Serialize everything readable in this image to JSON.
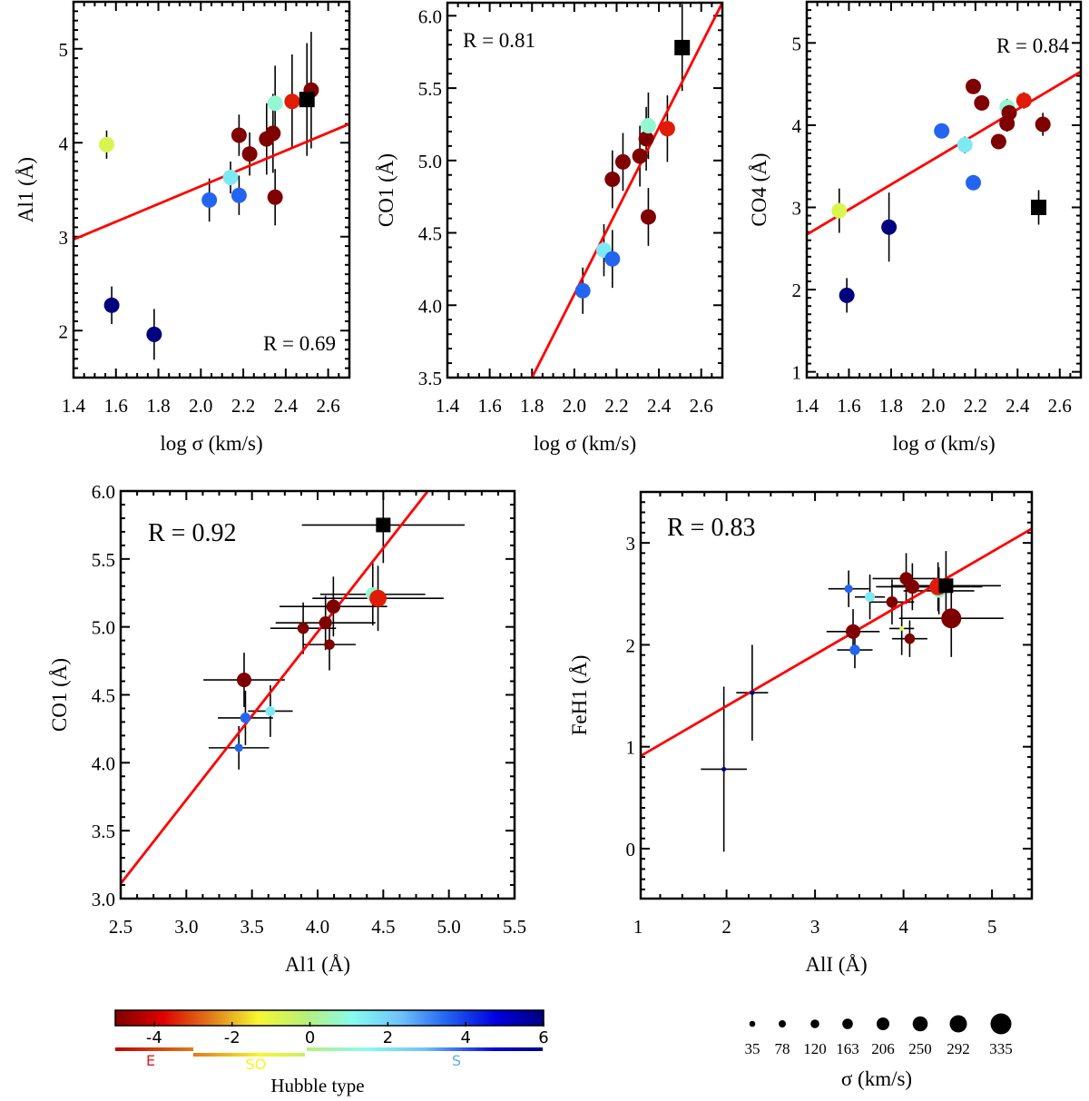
{
  "chart_data": [
    {
      "id": "p1",
      "type": "scatter",
      "xlabel": "log σ (km/s)",
      "ylabel": "Al1 (Å)",
      "xlim": [
        1.4,
        2.7
      ],
      "ylim": [
        1.5,
        5.5
      ],
      "xticks": [
        1.4,
        1.6,
        1.8,
        2.0,
        2.2,
        2.4,
        2.6
      ],
      "xtick_labels": [
        "1.4",
        "1.6",
        "1.8",
        "2.0",
        "2.2",
        "2.4",
        "2.6"
      ],
      "yticks": [
        2,
        3,
        4,
        5
      ],
      "ytick_labels": [
        "2",
        "3",
        "4",
        "5"
      ],
      "annotation": "R = 0.69",
      "annotation_position": "bottom-right",
      "fit_line": [
        [
          1.4,
          2.97
        ],
        [
          2.7,
          4.2
        ]
      ],
      "points": [
        {
          "x": 1.556,
          "y": 3.98,
          "yerr": 0.15,
          "hubble": -0.8
        },
        {
          "x": 1.58,
          "y": 2.27,
          "yerr": 0.2,
          "hubble": 6
        },
        {
          "x": 1.78,
          "y": 1.96,
          "yerr": 0.27,
          "hubble": 6
        },
        {
          "x": 2.04,
          "y": 3.39,
          "yerr": 0.23,
          "hubble": 3.5
        },
        {
          "x": 2.14,
          "y": 3.63,
          "yerr": 0.17,
          "hubble": 1.5
        },
        {
          "x": 2.18,
          "y": 3.44,
          "yerr": 0.21,
          "hubble": 3.5
        },
        {
          "x": 2.18,
          "y": 4.08,
          "yerr": 0.22,
          "hubble": -5
        },
        {
          "x": 2.23,
          "y": 3.88,
          "yerr": 0.23,
          "hubble": -5
        },
        {
          "x": 2.31,
          "y": 4.04,
          "yerr": 0.38,
          "hubble": -5
        },
        {
          "x": 2.34,
          "y": 4.1,
          "yerr": 0.42,
          "hubble": -5
        },
        {
          "x": 2.35,
          "y": 4.42,
          "yerr": 0.4,
          "hubble": 0.8
        },
        {
          "x": 2.35,
          "y": 3.42,
          "yerr": 0.3,
          "hubble": -5
        },
        {
          "x": 2.43,
          "y": 4.44,
          "yerr": 0.5,
          "hubble": -3.5
        },
        {
          "x": 2.52,
          "y": 4.56,
          "yerr": 0.62,
          "hubble": -5
        },
        {
          "x": 2.5,
          "y": 4.46,
          "yerr": 0.6,
          "marker": "square"
        }
      ]
    },
    {
      "id": "p2",
      "type": "scatter",
      "xlabel": "log σ (km/s)",
      "ylabel": "CO1 (Å)",
      "xlim": [
        1.4,
        2.7
      ],
      "ylim": [
        3.5,
        6.09
      ],
      "xticks": [
        1.4,
        1.6,
        1.8,
        2.0,
        2.2,
        2.4,
        2.6
      ],
      "xtick_labels": [
        "1.4",
        "1.6",
        "1.8",
        "2.0",
        "2.2",
        "2.4",
        "2.6"
      ],
      "yticks": [
        3.5,
        4.0,
        4.5,
        5.0,
        5.5,
        6.0
      ],
      "ytick_labels": [
        "3.5",
        "4.0",
        "4.5",
        "5.0",
        "5.5",
        "6.0"
      ],
      "annotation": "R = 0.81",
      "annotation_position": "top-left",
      "fit_line": [
        [
          1.8,
          3.5
        ],
        [
          2.7,
          6.09
        ]
      ],
      "points": [
        {
          "x": 2.04,
          "y": 4.1,
          "yerr": 0.16,
          "hubble": 3.5
        },
        {
          "x": 2.14,
          "y": 4.38,
          "yerr": 0.18,
          "hubble": 1.5
        },
        {
          "x": 2.18,
          "y": 4.32,
          "yerr": 0.2,
          "hubble": 3.5
        },
        {
          "x": 2.18,
          "y": 4.87,
          "yerr": 0.2,
          "hubble": -5
        },
        {
          "x": 2.23,
          "y": 4.99,
          "yerr": 0.2,
          "hubble": -5
        },
        {
          "x": 2.31,
          "y": 5.03,
          "yerr": 0.21,
          "hubble": -5
        },
        {
          "x": 2.34,
          "y": 5.15,
          "yerr": 0.22,
          "hubble": -5
        },
        {
          "x": 2.35,
          "y": 5.24,
          "yerr": 0.23,
          "hubble": 0.8
        },
        {
          "x": 2.35,
          "y": 4.61,
          "yerr": 0.2,
          "hubble": -5
        },
        {
          "x": 2.44,
          "y": 5.22,
          "yerr": 0.23,
          "hubble": -3.5
        },
        {
          "x": 2.51,
          "y": 5.78,
          "yerr": 0.3,
          "marker": "square"
        }
      ]
    },
    {
      "id": "p3",
      "type": "scatter",
      "xlabel": "log σ (km/s)",
      "ylabel": "CO4 (Å)",
      "xlim": [
        1.4,
        2.7
      ],
      "ylim": [
        0.93,
        5.5
      ],
      "xticks": [
        1.4,
        1.6,
        1.8,
        2.0,
        2.2,
        2.4,
        2.6
      ],
      "xtick_labels": [
        "1.4",
        "1.6",
        "1.8",
        "2.0",
        "2.2",
        "2.4",
        "2.6"
      ],
      "yticks": [
        1,
        2,
        3,
        4,
        5
      ],
      "ytick_labels": [
        "1",
        "2",
        "3",
        "4",
        "5"
      ],
      "annotation": "R = 0.84",
      "annotation_position": "top-right",
      "fit_line": [
        [
          1.4,
          2.67
        ],
        [
          2.7,
          4.65
        ]
      ],
      "points": [
        {
          "x": 1.554,
          "y": 2.96,
          "yerr": 0.27,
          "hubble": -0.8
        },
        {
          "x": 1.59,
          "y": 1.93,
          "yerr": 0.21,
          "hubble": 6
        },
        {
          "x": 1.79,
          "y": 2.76,
          "yerr": 0.42,
          "hubble": 6
        },
        {
          "x": 2.04,
          "y": 3.93,
          "yerr": 0.0,
          "hubble": 3.5
        },
        {
          "x": 2.15,
          "y": 3.76,
          "yerr": 0.1,
          "hubble": 1.5
        },
        {
          "x": 2.19,
          "y": 3.3,
          "yerr": 0.0,
          "hubble": 3.5
        },
        {
          "x": 2.19,
          "y": 4.47,
          "yerr": 0.0,
          "hubble": -5
        },
        {
          "x": 2.23,
          "y": 4.27,
          "yerr": 0.0,
          "hubble": -5
        },
        {
          "x": 2.31,
          "y": 3.8,
          "yerr": 0.0,
          "hubble": -5
        },
        {
          "x": 2.35,
          "y": 4.22,
          "yerr": 0.1,
          "hubble": 0.8
        },
        {
          "x": 2.35,
          "y": 4.02,
          "yerr": 0.1,
          "hubble": -5
        },
        {
          "x": 2.36,
          "y": 4.15,
          "yerr": 0.0,
          "hubble": -5
        },
        {
          "x": 2.43,
          "y": 4.3,
          "yerr": 0.1,
          "hubble": -3.5
        },
        {
          "x": 2.52,
          "y": 4.01,
          "yerr": 0.14,
          "hubble": -5
        },
        {
          "x": 2.5,
          "y": 3.0,
          "yerr": 0.21,
          "marker": "square"
        }
      ]
    },
    {
      "id": "p4",
      "type": "scatter",
      "xlabel": "Al1 (Å)",
      "ylabel": "CO1 (Å)",
      "xlim": [
        2.5,
        5.5
      ],
      "ylim": [
        3.0,
        6.0
      ],
      "xticks": [
        2.5,
        3.0,
        3.5,
        4.0,
        4.5,
        5.0,
        5.5
      ],
      "xtick_labels": [
        "2.5",
        "3.0",
        "3.5",
        "4.0",
        "4.5",
        "5.0",
        "5.5"
      ],
      "yticks": [
        3.0,
        3.5,
        4.0,
        4.5,
        5.0,
        5.5,
        6.0
      ],
      "ytick_labels": [
        "3.0",
        "3.5",
        "4.0",
        "4.5",
        "5.0",
        "5.5",
        "6.0"
      ],
      "annotation": "R = 0.92",
      "annotation_position": "top-left",
      "fit_line": [
        [
          2.5,
          3.11
        ],
        [
          4.84,
          6.0
        ]
      ],
      "points": [
        {
          "x": 3.4,
          "y": 4.11,
          "xerr": 0.23,
          "yerr": 0.16,
          "hubble": 3.5,
          "sigma": 110
        },
        {
          "x": 3.45,
          "y": 4.33,
          "xerr": 0.21,
          "yerr": 0.2,
          "hubble": 3.5,
          "sigma": 150
        },
        {
          "x": 3.64,
          "y": 4.38,
          "xerr": 0.17,
          "yerr": 0.19,
          "hubble": 1.5,
          "sigma": 140
        },
        {
          "x": 3.44,
          "y": 4.61,
          "xerr": 0.31,
          "yerr": 0.2,
          "hubble": -5,
          "sigma": 230
        },
        {
          "x": 3.89,
          "y": 4.99,
          "xerr": 0.25,
          "yerr": 0.19,
          "hubble": -5,
          "sigma": 170
        },
        {
          "x": 4.09,
          "y": 4.87,
          "xerr": 0.2,
          "yerr": 0.19,
          "hubble": -5,
          "sigma": 150
        },
        {
          "x": 4.06,
          "y": 5.03,
          "xerr": 0.38,
          "yerr": 0.2,
          "hubble": -5,
          "sigma": 200
        },
        {
          "x": 4.12,
          "y": 5.15,
          "xerr": 0.41,
          "yerr": 0.22,
          "hubble": -5,
          "sigma": 220
        },
        {
          "x": 4.42,
          "y": 5.24,
          "xerr": 0.4,
          "yerr": 0.23,
          "hubble": 0.8,
          "sigma": 220
        },
        {
          "x": 4.46,
          "y": 5.21,
          "xerr": 0.5,
          "yerr": 0.24,
          "hubble": -3.5,
          "sigma": 280
        },
        {
          "x": 4.5,
          "y": 5.75,
          "xerr": 0.62,
          "yerr": 0.28,
          "marker": "square"
        }
      ]
    },
    {
      "id": "p5",
      "type": "scatter",
      "xlabel": "AlI (Å)",
      "ylabel": "FeH1 (Å)",
      "xlim": [
        1.03,
        5.45
      ],
      "ylim": [
        -0.49,
        3.5
      ],
      "xticks": [
        1,
        2,
        3,
        4,
        5
      ],
      "xtick_labels": [
        "1",
        "2",
        "3",
        "4",
        "5"
      ],
      "yticks": [
        0,
        1,
        2,
        3
      ],
      "ytick_labels": [
        "0",
        "1",
        "2",
        "3"
      ],
      "annotation": "R = 0.83",
      "annotation_position": "top-left",
      "fit_line": [
        [
          1.03,
          0.91
        ],
        [
          5.45,
          3.14
        ]
      ],
      "points": [
        {
          "x": 1.97,
          "y": 0.78,
          "xerr": 0.26,
          "yerr": 0.81,
          "hubble": 6,
          "sigma": 38
        },
        {
          "x": 2.29,
          "y": 1.53,
          "xerr": 0.18,
          "yerr": 0.47,
          "hubble": 6,
          "sigma": 40
        },
        {
          "x": 3.38,
          "y": 2.55,
          "xerr": 0.23,
          "yerr": 0.18,
          "hubble": 3.5,
          "sigma": 110
        },
        {
          "x": 3.62,
          "y": 2.47,
          "xerr": 0.17,
          "yerr": 0.22,
          "hubble": 1.5,
          "sigma": 140
        },
        {
          "x": 3.87,
          "y": 2.42,
          "xerr": 0.25,
          "yerr": 0.22,
          "hubble": -5,
          "sigma": 170
        },
        {
          "x": 4.03,
          "y": 2.65,
          "xerr": 0.38,
          "yerr": 0.25,
          "hubble": -5,
          "sigma": 200
        },
        {
          "x": 4.1,
          "y": 2.57,
          "xerr": 0.41,
          "yerr": 0.23,
          "hubble": -5,
          "sigma": 220
        },
        {
          "x": 4.4,
          "y": 2.53,
          "xerr": 0.4,
          "yerr": 0.23,
          "hubble": 0.8,
          "sigma": 220
        },
        {
          "x": 4.39,
          "y": 2.57,
          "xerr": 0.5,
          "yerr": 0.24,
          "hubble": -3.5,
          "sigma": 280
        },
        {
          "x": 4.54,
          "y": 2.26,
          "xerr": 0.59,
          "yerr": 0.38,
          "hubble": -5,
          "sigma": 335
        },
        {
          "x": 3.43,
          "y": 2.13,
          "xerr": 0.3,
          "yerr": 0.22,
          "hubble": -5,
          "sigma": 230
        },
        {
          "x": 3.45,
          "y": 1.95,
          "xerr": 0.2,
          "yerr": 0.18,
          "hubble": 3.5,
          "sigma": 150
        },
        {
          "x": 3.98,
          "y": 2.16,
          "xerr": 0.14,
          "yerr": 0.26,
          "hubble": -0.8,
          "sigma": 36
        },
        {
          "x": 4.07,
          "y": 2.06,
          "xerr": 0.2,
          "yerr": 0.18,
          "hubble": -5,
          "sigma": 150
        },
        {
          "x": 4.48,
          "y": 2.58,
          "xerr": 0.62,
          "yerr": 0.34,
          "marker": "square"
        }
      ]
    }
  ],
  "colorbar": {
    "title": "Hubble type",
    "range": [
      -5,
      6
    ],
    "ticks": [
      -4,
      -2,
      0,
      2,
      4,
      6
    ],
    "tick_labels": [
      "-4",
      "-2",
      "0",
      "2",
      "4",
      "6"
    ],
    "classes": [
      {
        "label": "E",
        "from": -5,
        "to": -3,
        "color": "#e31a1c"
      },
      {
        "label": "SO",
        "from": -3,
        "to": -0.1,
        "color": "#f5f518"
      },
      {
        "label": "S",
        "from": 0,
        "to": 6,
        "color": "#5aaef2"
      }
    ],
    "stops": [
      "#7f0000",
      "#e00000",
      "#e07b1a",
      "#f7f730",
      "#b7f07a",
      "#87fbf0",
      "#6fc3fa",
      "#2060f0",
      "#0000e0",
      "#00007f"
    ]
  },
  "size_legend": {
    "title": "σ (km/s)",
    "values": [
      35,
      78,
      120,
      163,
      206,
      250,
      292,
      335
    ],
    "labels": [
      "35",
      "78",
      "120",
      "163",
      "206",
      "250",
      "292",
      "335"
    ]
  }
}
